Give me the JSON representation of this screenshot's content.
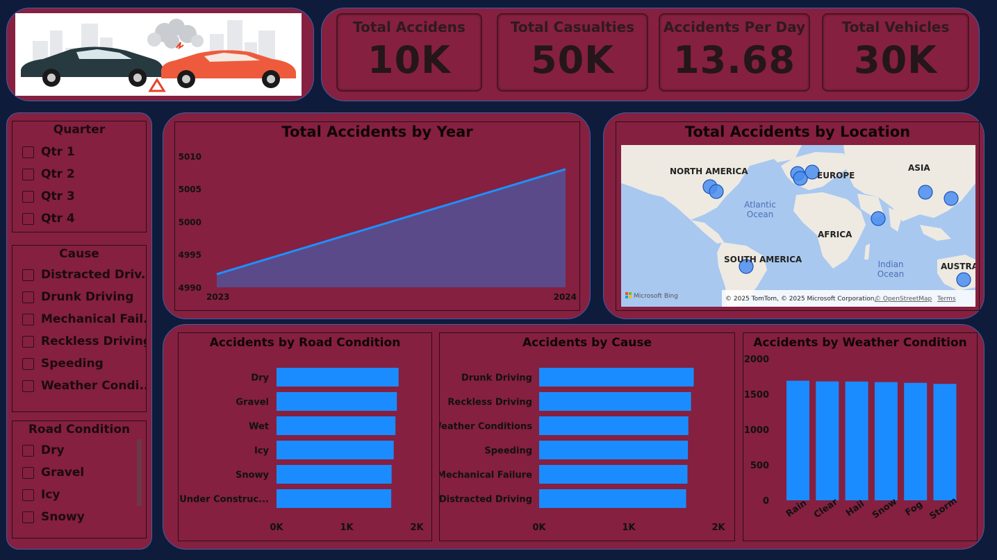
{
  "header": {
    "kpis": [
      {
        "title": "Total Accidens",
        "value": "10K"
      },
      {
        "title": "Total Casualties",
        "value": "50K"
      },
      {
        "title": "Accidents Per Day",
        "value": "13.68"
      },
      {
        "title": "Total Vehicles",
        "value": "30K"
      }
    ]
  },
  "slicers": {
    "quarter": {
      "title": "Quarter",
      "items": [
        "Qtr 1",
        "Qtr 2",
        "Qtr 3",
        "Qtr 4"
      ]
    },
    "cause": {
      "title": "Cause",
      "items": [
        "Distracted Driv...",
        "Drunk Driving",
        "Mechanical Fail...",
        "Reckless Driving",
        "Speeding",
        "Weather Condi..."
      ]
    },
    "road": {
      "title": "Road Condition",
      "items": [
        "Dry",
        "Gravel",
        "Icy",
        "Snowy"
      ]
    }
  },
  "year_chart": {
    "title": "Total Accidents by Year",
    "chart_data": {
      "type": "area",
      "x": [
        "2023",
        "2024"
      ],
      "values": [
        4992,
        5008
      ],
      "yticks": [
        4990,
        4995,
        5000,
        5005,
        5010
      ],
      "ylim": [
        4990,
        5012
      ]
    }
  },
  "map_chart": {
    "title": "Total Accidents by Location",
    "labels": {
      "north_america": "NORTH AMERICA",
      "europe": "EUROPE",
      "asia": "ASIA",
      "africa": "AFRICA",
      "south_america": "SOUTH AMERICA",
      "austra": "AUSTRA",
      "atlantic_1": "Atlantic",
      "atlantic_2": "Ocean",
      "indian_1": "Indian",
      "indian_2": "Ocean"
    },
    "attribution": "© 2025 TomTom, © 2025 Microsoft Corporation,",
    "osm_link": "© OpenStreetMap",
    "terms_link": "Terms",
    "bing_logo": "Microsoft Bing"
  },
  "road_chart": {
    "title": "Accidents by Road Condition",
    "chart_data": {
      "type": "bar",
      "orientation": "horizontal",
      "categories": [
        "Dry",
        "Gravel",
        "Wet",
        "Icy",
        "Snowy",
        "Under Construc..."
      ],
      "values": [
        1740,
        1715,
        1695,
        1670,
        1640,
        1635
      ],
      "xticks": [
        "0K",
        "1K",
        "2K"
      ],
      "xlim": [
        0,
        2000
      ]
    }
  },
  "cause_chart": {
    "title": "Accidents by Cause",
    "chart_data": {
      "type": "bar",
      "orientation": "horizontal",
      "categories": [
        "Drunk Driving",
        "Reckless Driving",
        "Weather Conditions",
        "Speeding",
        "Mechanical Failure",
        "Distracted Driving"
      ],
      "values": [
        1725,
        1695,
        1665,
        1660,
        1655,
        1640
      ],
      "xticks": [
        "0K",
        "1K",
        "2K"
      ],
      "xlim": [
        0,
        2000
      ]
    }
  },
  "weather_chart": {
    "title": "Accidents by Weather Condition",
    "chart_data": {
      "type": "bar",
      "categories": [
        "Rain",
        "Clear",
        "Hail",
        "Snow",
        "Fog",
        "Storm"
      ],
      "values": [
        1690,
        1680,
        1678,
        1670,
        1660,
        1645
      ],
      "yticks": [
        "0",
        "500",
        "1000",
        "1500",
        "2000"
      ],
      "ylim": [
        0,
        2000
      ]
    }
  },
  "colors": {
    "panel": "#852040",
    "background": "#0f1b3a",
    "bar": "#1b8cff",
    "line": "#1e90ff",
    "area": "#5a4a8a",
    "map_water": "#a8c8f0",
    "map_land": "#eeeae2"
  }
}
